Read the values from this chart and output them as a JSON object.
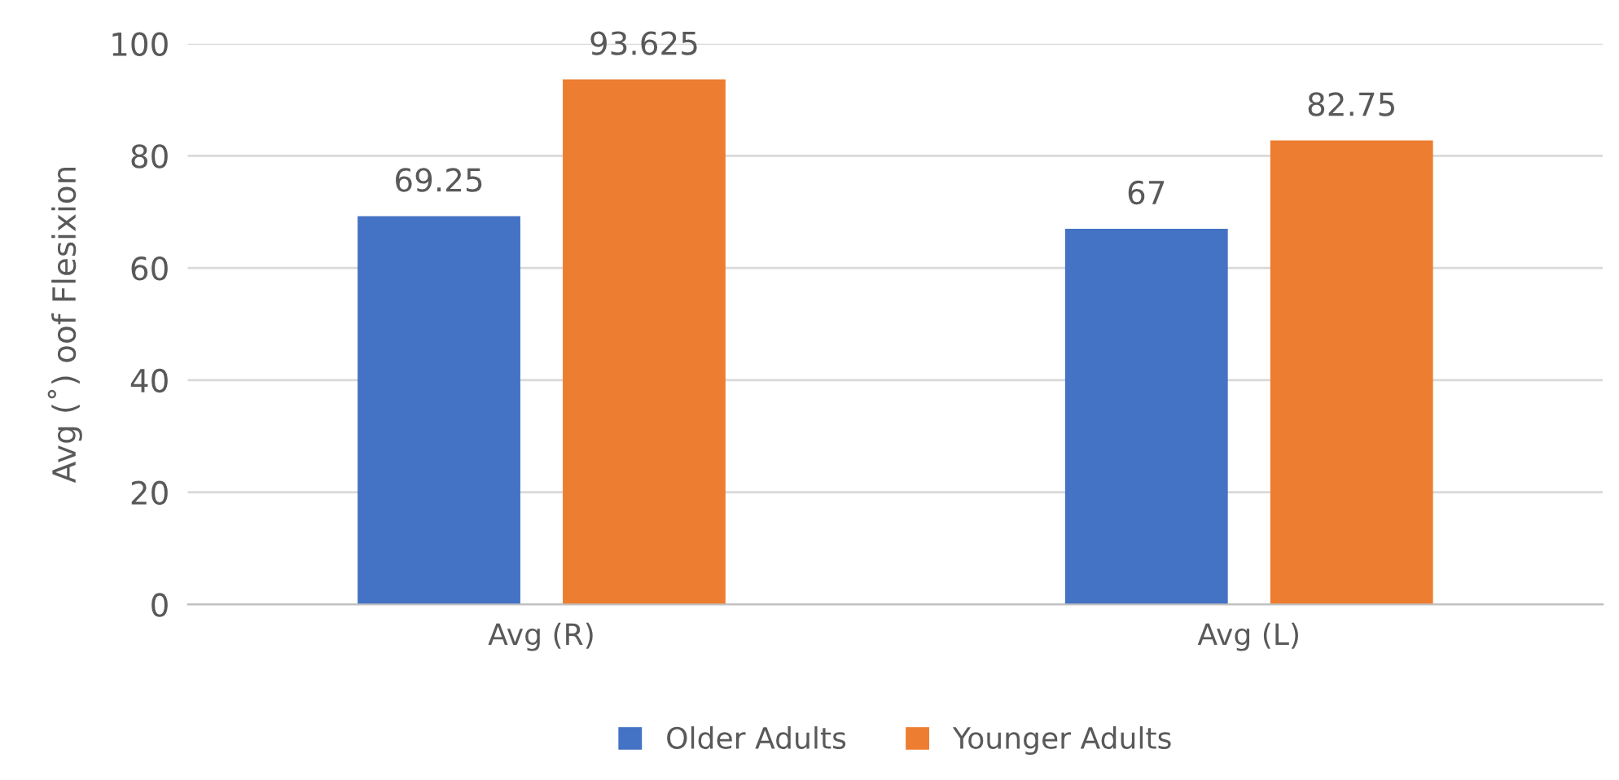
{
  "chart_data": {
    "type": "bar",
    "ylabel": "Avg (˚) oof Flesixion",
    "categories": [
      "Avg (R)",
      "Avg (L)"
    ],
    "series": [
      {
        "name": "Older Adults",
        "color": "#4472c4",
        "values": [
          69.25,
          67
        ]
      },
      {
        "name": "Younger Adults",
        "color": "#ed7d31",
        "values": [
          93.625,
          82.75
        ]
      }
    ],
    "ylim": [
      0,
      100
    ],
    "yticks": [
      0,
      20,
      40,
      60,
      80,
      100
    ],
    "grid": "y",
    "legend": "bottom",
    "data_labels": true
  }
}
